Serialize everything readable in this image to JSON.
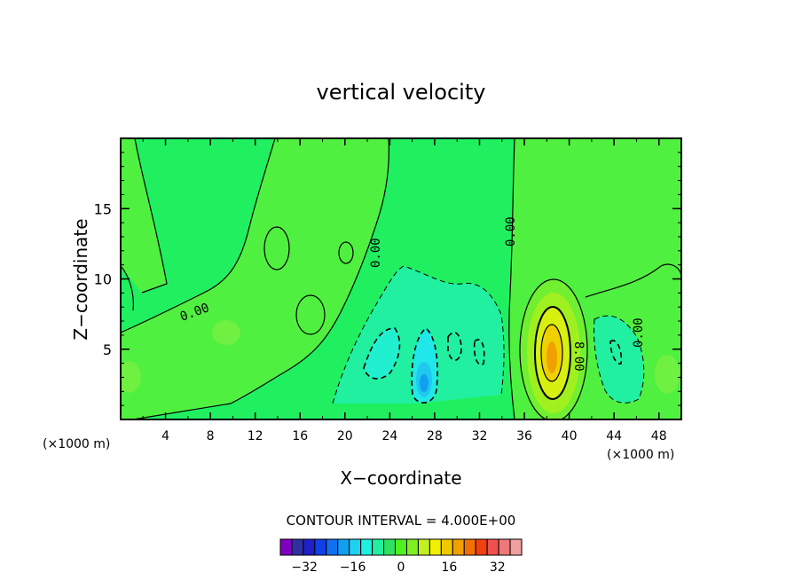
{
  "chart_data": {
    "type": "heatmap",
    "title": "vertical velocity",
    "xlabel": "X−coordinate",
    "ylabel": "Z−coordinate",
    "x_unit_left": "(×1000 m)",
    "x_unit_right": "(×1000 m)",
    "xlim": [
      0,
      50
    ],
    "ylim": [
      0,
      20
    ],
    "x_ticks": [
      "4",
      "8",
      "12",
      "16",
      "20",
      "24",
      "28",
      "32",
      "36",
      "40",
      "44",
      "48"
    ],
    "y_ticks": [
      "5",
      "10",
      "15"
    ],
    "contour_interval_label": "CONTOUR INTERVAL = 4.000E+00",
    "contour_labels": [
      "0.00",
      "0.00",
      "0.00",
      "0.00",
      "8.00"
    ],
    "features": [
      {
        "kind": "updraft-max",
        "x": 38.5,
        "z": 4.5,
        "value_approx": 12
      },
      {
        "kind": "downdraft-min",
        "x": 27,
        "z": 2.5,
        "value_approx": -16
      }
    ],
    "colorbar": {
      "min": -40,
      "max": 40,
      "step": 4,
      "tick_labels": [
        "−32",
        "−16",
        "0",
        "16",
        "32"
      ],
      "colors": [
        "#8000c0",
        "#3030a0",
        "#2020c8",
        "#1040e8",
        "#1070f0",
        "#10a0f0",
        "#20d0f0",
        "#20f0e0",
        "#20f0a0",
        "#30e060",
        "#50f020",
        "#80f020",
        "#c0f020",
        "#f0f000",
        "#f0c800",
        "#f0a000",
        "#f07000",
        "#f04010",
        "#f05050",
        "#f07878",
        "#f0a0a0"
      ]
    }
  }
}
